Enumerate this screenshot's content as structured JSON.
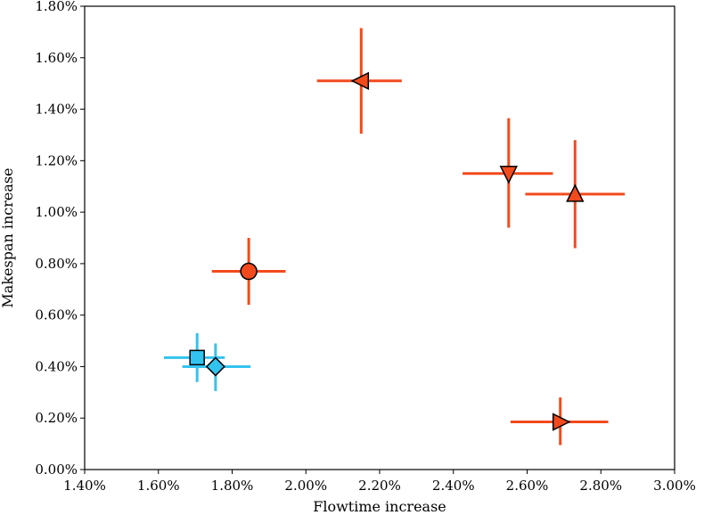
{
  "chart_data": {
    "type": "scatter",
    "title": "",
    "xlabel": "Flowtime increase",
    "ylabel": "Makespan increase",
    "xlim": [
      1.4,
      3.0
    ],
    "ylim": [
      0.0,
      1.8
    ],
    "x_ticks": [
      "1.40%",
      "1.60%",
      "1.80%",
      "2.00%",
      "2.20%",
      "2.40%",
      "2.60%",
      "2.80%",
      "3.00%"
    ],
    "y_ticks": [
      "0.00%",
      "0.20%",
      "0.40%",
      "0.60%",
      "0.80%",
      "1.00%",
      "1.20%",
      "1.40%",
      "1.60%",
      "1.80%"
    ],
    "grid": false,
    "colors": {
      "orange": "#f34a1d",
      "blue": "#33c3ef",
      "edge": "#000000"
    },
    "points": [
      {
        "marker": "circle",
        "color": "orange",
        "x": 1.845,
        "y": 0.77,
        "xerr": [
          1.745,
          1.945
        ],
        "yerr": [
          0.64,
          0.9
        ]
      },
      {
        "marker": "triangle-left",
        "color": "orange",
        "x": 2.15,
        "y": 1.51,
        "xerr": [
          2.03,
          2.26
        ],
        "yerr": [
          1.305,
          1.715
        ]
      },
      {
        "marker": "triangle-down",
        "color": "orange",
        "x": 2.55,
        "y": 1.15,
        "xerr": [
          2.425,
          2.67
        ],
        "yerr": [
          0.94,
          1.365
        ]
      },
      {
        "marker": "triangle-up",
        "color": "orange",
        "x": 2.73,
        "y": 1.07,
        "xerr": [
          2.595,
          2.865
        ],
        "yerr": [
          0.86,
          1.28
        ]
      },
      {
        "marker": "triangle-right",
        "color": "orange",
        "x": 2.69,
        "y": 0.185,
        "xerr": [
          2.555,
          2.82
        ],
        "yerr": [
          0.095,
          0.28
        ]
      },
      {
        "marker": "square",
        "color": "blue",
        "x": 1.705,
        "y": 0.435,
        "xerr": [
          1.615,
          1.78
        ],
        "yerr": [
          0.34,
          0.53
        ]
      },
      {
        "marker": "diamond",
        "color": "blue",
        "x": 1.755,
        "y": 0.4,
        "xerr": [
          1.665,
          1.85
        ],
        "yerr": [
          0.305,
          0.49
        ]
      }
    ]
  }
}
